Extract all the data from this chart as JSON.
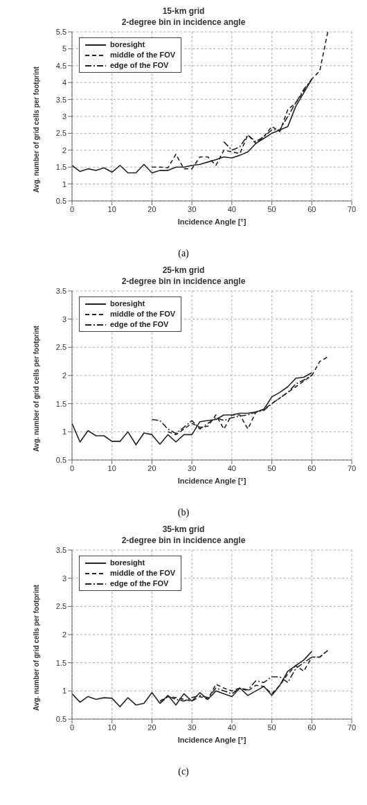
{
  "chart_data": [
    {
      "type": "line",
      "title": "15-km grid",
      "subtitle": "2-degree bin in incidence angle",
      "xlabel": "Incidence Angle [°]",
      "ylabel": "Avg. number of grid cells per footprint",
      "annotations": [
        "(a)"
      ],
      "xlim": [
        0,
        70
      ],
      "xticks": [
        0,
        10,
        20,
        30,
        40,
        50,
        60,
        70
      ],
      "ylim": [
        0.5,
        5.5
      ],
      "yticks": [
        0.5,
        1,
        1.5,
        2,
        2.5,
        3,
        3.5,
        4,
        4.5,
        5,
        5.5
      ],
      "grid": true,
      "legend": "top left",
      "marker": "none",
      "series": [
        {
          "name": "boresight",
          "color": "#222222",
          "line_style": "solid",
          "x": [
            0,
            2,
            4,
            6,
            8,
            10,
            12,
            14,
            16,
            18,
            20,
            22,
            24,
            26,
            28,
            30,
            32,
            34,
            36,
            38,
            40,
            42,
            44,
            46,
            48,
            50,
            52,
            54,
            56,
            58,
            60
          ],
          "values": [
            1.55,
            1.37,
            1.45,
            1.4,
            1.48,
            1.35,
            1.55,
            1.33,
            1.33,
            1.58,
            1.33,
            1.4,
            1.4,
            1.5,
            1.5,
            1.55,
            1.58,
            1.65,
            1.72,
            1.8,
            1.77,
            1.85,
            1.95,
            2.2,
            2.35,
            2.5,
            2.6,
            2.7,
            3.3,
            3.7,
            4.1
          ]
        },
        {
          "name": "middle of the FOV",
          "color": "#222222",
          "line_style": "dashed",
          "x": [
            20,
            22,
            24,
            26,
            28,
            30,
            32,
            34,
            36,
            38,
            40,
            42,
            44,
            46,
            48,
            50,
            52,
            54,
            56,
            58,
            60,
            62,
            64
          ],
          "values": [
            1.5,
            1.5,
            1.48,
            1.88,
            1.45,
            1.45,
            1.8,
            1.8,
            1.55,
            2.0,
            1.95,
            1.9,
            2.45,
            2.2,
            2.4,
            2.7,
            2.55,
            3.2,
            3.4,
            3.75,
            4.1,
            4.35,
            5.5
          ]
        },
        {
          "name": "edge of the FOV",
          "color": "#222222",
          "line_style": "dashdot",
          "x": [
            38,
            40,
            42,
            44,
            46,
            48,
            50,
            52,
            54,
            56,
            58,
            60
          ],
          "values": [
            2.25,
            2.0,
            2.1,
            2.45,
            2.25,
            2.4,
            2.6,
            2.6,
            3.0,
            3.4,
            3.8,
            4.1
          ]
        }
      ]
    },
    {
      "type": "line",
      "title": "25-km grid",
      "subtitle": "2-degree bin in incidence angle",
      "xlabel": "Incidence Angle [°]",
      "ylabel": "Avg. number of grid cells per footprint",
      "annotations": [
        "(b)"
      ],
      "xlim": [
        0,
        70
      ],
      "xticks": [
        0,
        10,
        20,
        30,
        40,
        50,
        60,
        70
      ],
      "ylim": [
        0.5,
        3.5
      ],
      "yticks": [
        0.5,
        1,
        1.5,
        2,
        2.5,
        3,
        3.5
      ],
      "grid": true,
      "legend": "top left",
      "marker": "none",
      "series": [
        {
          "name": "boresight",
          "color": "#222222",
          "line_style": "solid",
          "x": [
            0,
            2,
            4,
            6,
            8,
            10,
            12,
            14,
            16,
            18,
            20,
            22,
            24,
            26,
            28,
            30,
            32,
            34,
            36,
            38,
            40,
            42,
            44,
            46,
            48,
            50,
            52,
            54,
            56,
            58,
            60
          ],
          "values": [
            1.15,
            0.82,
            1.02,
            0.93,
            0.93,
            0.83,
            0.83,
            1.0,
            0.77,
            0.98,
            0.95,
            0.78,
            0.95,
            0.82,
            0.95,
            0.95,
            1.18,
            1.2,
            1.22,
            1.3,
            1.3,
            1.33,
            1.33,
            1.35,
            1.4,
            1.62,
            1.7,
            1.8,
            1.95,
            1.97,
            2.05
          ]
        },
        {
          "name": "middle of the FOV",
          "color": "#222222",
          "line_style": "dashed",
          "x": [
            24,
            26,
            28,
            30,
            32,
            34,
            36,
            38,
            40,
            42,
            44,
            46,
            48,
            50,
            52,
            54,
            56,
            58,
            60,
            62,
            64
          ],
          "values": [
            1.0,
            0.95,
            1.05,
            1.15,
            1.08,
            1.1,
            1.3,
            1.05,
            1.3,
            1.3,
            1.05,
            1.35,
            1.4,
            1.5,
            1.6,
            1.7,
            1.8,
            1.9,
            2.0,
            2.25,
            2.33
          ]
        },
        {
          "name": "edge of the FOV",
          "color": "#222222",
          "line_style": "dashdot",
          "x": [
            20,
            22,
            24,
            26,
            28,
            30,
            32,
            34,
            36,
            38,
            40,
            42,
            44,
            46,
            48,
            50,
            52,
            54,
            56,
            58,
            60
          ],
          "values": [
            1.22,
            1.2,
            1.05,
            0.97,
            1.08,
            1.2,
            1.05,
            1.15,
            1.25,
            1.2,
            1.25,
            1.28,
            1.3,
            1.35,
            1.38,
            1.5,
            1.6,
            1.7,
            1.85,
            1.92,
            2.0
          ]
        }
      ]
    },
    {
      "type": "line",
      "title": "35-km grid",
      "subtitle": "2-degree bin in incidence angle",
      "xlabel": "Incidence Angle [°]",
      "ylabel": "Avg. number of grid cells per footprint",
      "annotations": [
        "(c)"
      ],
      "xlim": [
        0,
        70
      ],
      "xticks": [
        0,
        10,
        20,
        30,
        40,
        50,
        60,
        70
      ],
      "ylim": [
        0.5,
        3.5
      ],
      "yticks": [
        0.5,
        1,
        1.5,
        2,
        2.5,
        3,
        3.5
      ],
      "grid": true,
      "legend": "top left",
      "marker": "none",
      "series": [
        {
          "name": "boresight",
          "color": "#222222",
          "line_style": "solid",
          "x": [
            0,
            2,
            4,
            6,
            8,
            10,
            12,
            14,
            16,
            18,
            20,
            22,
            24,
            26,
            28,
            30,
            32,
            34,
            36,
            38,
            40,
            42,
            44,
            46,
            48,
            50,
            52,
            54,
            56,
            58,
            60
          ],
          "values": [
            0.95,
            0.8,
            0.9,
            0.85,
            0.88,
            0.87,
            0.72,
            0.88,
            0.75,
            0.78,
            0.97,
            0.78,
            0.92,
            0.75,
            0.95,
            0.82,
            0.97,
            0.85,
            1.0,
            0.95,
            0.9,
            1.05,
            0.92,
            1.0,
            1.08,
            0.92,
            1.1,
            1.35,
            1.45,
            1.55,
            1.7
          ]
        },
        {
          "name": "middle of the FOV",
          "color": "#222222",
          "line_style": "dashed",
          "x": [
            22,
            24,
            26,
            28,
            30,
            32,
            34,
            36,
            38,
            40,
            42,
            44,
            46,
            48,
            50,
            52,
            54,
            56,
            58,
            60,
            62,
            64
          ],
          "values": [
            0.82,
            0.9,
            0.88,
            0.85,
            0.82,
            0.9,
            0.85,
            1.12,
            1.05,
            1.0,
            1.05,
            1.0,
            1.1,
            1.08,
            0.95,
            1.1,
            1.3,
            1.45,
            1.35,
            1.6,
            1.6,
            1.72
          ]
        },
        {
          "name": "edge of the FOV",
          "color": "#222222",
          "line_style": "dashdot",
          "x": [
            22,
            24,
            26,
            28,
            30,
            32,
            34,
            36,
            38,
            40,
            42,
            44,
            46,
            48,
            50,
            52,
            54,
            56,
            58,
            60,
            62,
            64
          ],
          "values": [
            0.78,
            0.9,
            0.85,
            0.82,
            0.88,
            0.92,
            0.88,
            1.05,
            1.0,
            0.95,
            1.05,
            1.02,
            1.18,
            1.15,
            1.25,
            1.25,
            1.15,
            1.4,
            1.5,
            1.6,
            1.6,
            1.72
          ]
        }
      ]
    }
  ]
}
